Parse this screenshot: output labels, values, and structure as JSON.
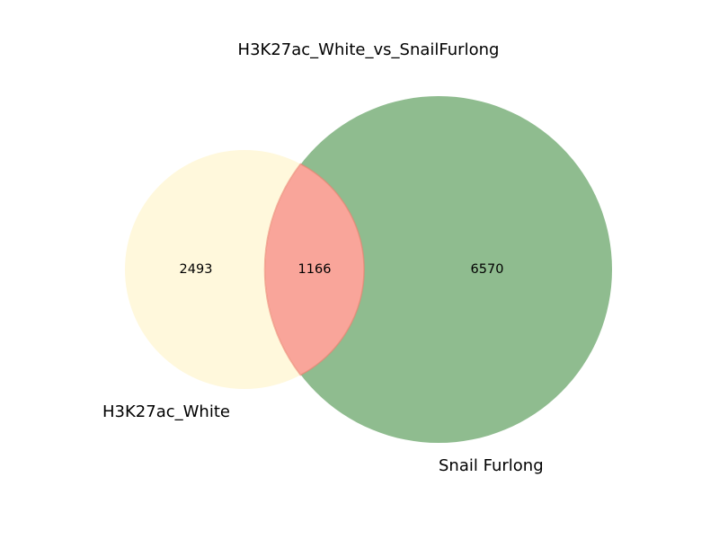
{
  "title": "H3K27ac_White_vs_SnailFurlong",
  "sets": [
    {
      "name": "H3K27ac_White",
      "only": "2493",
      "color": "#fff8dc"
    },
    {
      "name": "Snail Furlong",
      "only": "6570",
      "color": "#8fbc8f"
    }
  ],
  "overlap": {
    "count": "1166",
    "color": "#f9a59a",
    "edge": "#ee8070"
  }
}
